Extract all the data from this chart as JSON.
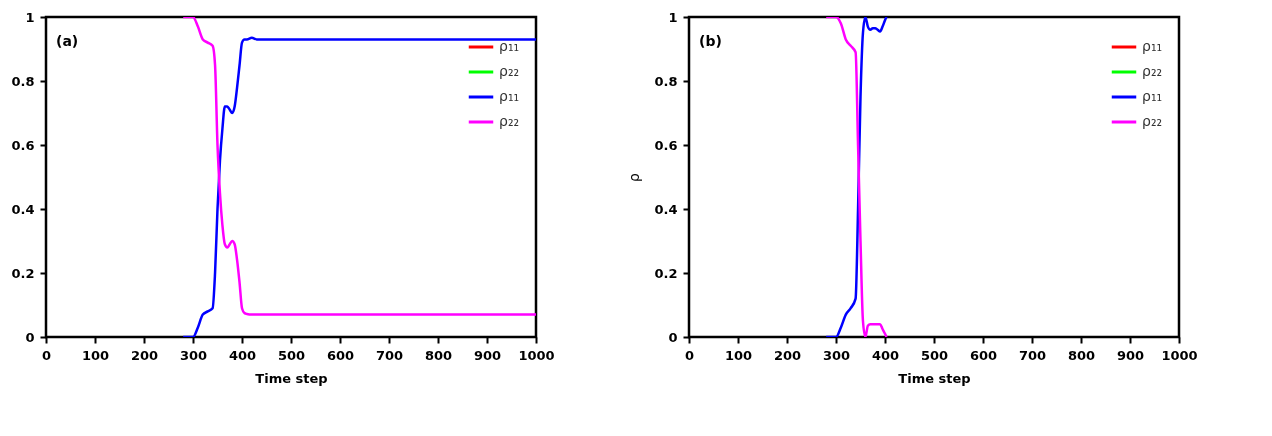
{
  "chart_data": [
    {
      "type": "line",
      "xlabel": "Time step",
      "annotations": [
        "(a)"
      ],
      "legend": "top right",
      "x": [
        280,
        300,
        310,
        320,
        330,
        340,
        345,
        350,
        355,
        360,
        365,
        370,
        375,
        380,
        385,
        390,
        395,
        400,
        405,
        410,
        420,
        430,
        500,
        600,
        700,
        800,
        900,
        1000
      ],
      "xlim": [
        0,
        1000
      ],
      "xticks": [
        0,
        100,
        200,
        300,
        400,
        500,
        600,
        700,
        800,
        900,
        1000
      ],
      "ylim": [
        0,
        1
      ],
      "yticks": [
        0,
        0.2,
        0.4,
        0.6,
        0.8,
        1
      ],
      "series": [
        {
          "name": "ρ₁₁",
          "color": "#ff0000",
          "values": [
            null,
            null,
            null,
            null,
            null,
            null,
            null,
            null,
            null,
            null,
            null,
            null,
            null,
            null,
            null,
            null,
            null,
            null,
            null,
            null,
            null,
            null,
            null,
            null,
            null,
            null,
            null,
            null
          ]
        },
        {
          "name": "ρ₂₂",
          "color": "#00ff00",
          "values": [
            null,
            null,
            null,
            null,
            null,
            null,
            null,
            null,
            null,
            null,
            null,
            null,
            null,
            null,
            null,
            null,
            null,
            null,
            null,
            null,
            null,
            null,
            null,
            null,
            null,
            null,
            null,
            null
          ]
        },
        {
          "name": "ρ₁₁",
          "color": "#0000ff",
          "values": [
            0,
            0,
            0.03,
            0.07,
            0.08,
            0.09,
            0.2,
            0.4,
            0.55,
            0.65,
            0.72,
            0.72,
            0.71,
            0.7,
            0.72,
            0.78,
            0.85,
            0.92,
            0.93,
            0.93,
            0.935,
            0.93,
            0.93,
            0.93,
            0.93,
            0.93,
            0.93,
            0.93
          ]
        },
        {
          "name": "ρ₂₂",
          "color": "#ff00ff",
          "values": [
            1,
            1,
            0.97,
            0.93,
            0.92,
            0.91,
            0.85,
            0.6,
            0.45,
            0.35,
            0.29,
            0.28,
            0.29,
            0.3,
            0.29,
            0.24,
            0.17,
            0.09,
            0.075,
            0.072,
            0.07,
            0.07,
            0.07,
            0.07,
            0.07,
            0.07,
            0.07,
            0.07
          ]
        }
      ]
    },
    {
      "type": "line",
      "xlabel": "Time step",
      "ylabel": "ρ",
      "annotations": [
        "(b)"
      ],
      "legend": "top right",
      "x": [
        280,
        300,
        310,
        320,
        330,
        340,
        345,
        350,
        355,
        360,
        365,
        370,
        375,
        380,
        385,
        390,
        395,
        400,
        403
      ],
      "xlim": [
        0,
        1000
      ],
      "xticks": [
        0,
        100,
        200,
        300,
        400,
        500,
        600,
        700,
        800,
        900,
        1000
      ],
      "ylim": [
        0,
        1
      ],
      "yticks": [
        0,
        0.2,
        0.4,
        0.6,
        0.8,
        1
      ],
      "series": [
        {
          "name": "ρ₁₁",
          "color": "#ff0000",
          "values": [
            null,
            null,
            null,
            null,
            null,
            null,
            null,
            null,
            null,
            null,
            null,
            null,
            null,
            null,
            null,
            null,
            null,
            null,
            null
          ]
        },
        {
          "name": "ρ₂₂",
          "color": "#00ff00",
          "values": [
            null,
            null,
            null,
            null,
            null,
            null,
            null,
            null,
            null,
            null,
            null,
            null,
            null,
            null,
            null,
            null,
            null,
            null,
            null
          ]
        },
        {
          "name": "ρ₁₁",
          "color": "#0000ff",
          "values": [
            0,
            0,
            0.03,
            0.07,
            0.09,
            0.12,
            0.4,
            0.75,
            0.95,
            1,
            0.97,
            0.96,
            0.965,
            0.965,
            0.96,
            0.955,
            0.97,
            0.99,
            1
          ]
        },
        {
          "name": "ρ₂₂",
          "color": "#ff00ff",
          "values": [
            1,
            1,
            0.98,
            0.93,
            0.91,
            0.89,
            0.6,
            0.3,
            0.05,
            0,
            0.035,
            0.04,
            0.04,
            0.04,
            0.04,
            0.04,
            0.025,
            0.01,
            0
          ]
        }
      ]
    }
  ]
}
